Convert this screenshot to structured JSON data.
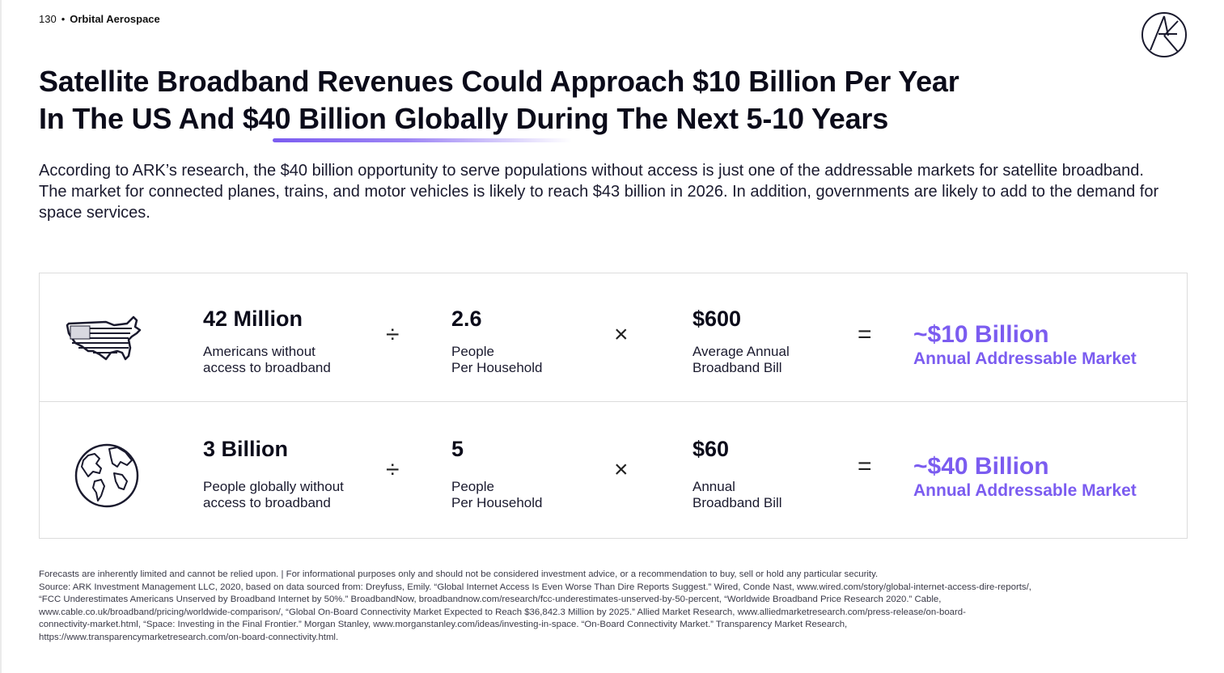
{
  "header": {
    "page_number": "130",
    "separator": "•",
    "section": "Orbital Aerospace",
    "logo_icon": "ark-logo-icon"
  },
  "title": {
    "line1": "Satellite Broadband Revenues Could Approach $10 Billion Per Year",
    "line2": "In The US And $40 Billion Globally During The Next 5-10 Years"
  },
  "intro": "According to ARK’s research, the $40 billion opportunity to serve populations without access is just one of the addressable markets for satellite broadband. The market for connected planes, trains, and motor vehicles is likely to reach $43 billion in 2026. In addition, governments are likely to add to the demand for space services.",
  "rows": [
    {
      "icon": "us-flag-map-icon",
      "a_value": "42 Million",
      "a_label": "Americans without\naccess to broadband",
      "op1": "÷",
      "b_value": "2.6",
      "b_label": "People\nPer Household",
      "op2": "×",
      "c_value": "$600",
      "c_label": "Average Annual\nBroadband Bill",
      "op3": "=",
      "result_value": "~$10 Billion",
      "result_label": "Annual Addressable Market"
    },
    {
      "icon": "globe-icon",
      "a_value": "3 Billion",
      "a_label": "People globally without\naccess to broadband",
      "op1": "÷",
      "b_value": "5",
      "b_label": "People\nPer Household",
      "op2": "×",
      "c_value": "$60",
      "c_label": "Annual\nBroadband Bill",
      "op3": "=",
      "result_value": "~$40 Billion",
      "result_label": "Annual Addressable Market"
    }
  ],
  "colors": {
    "accent": "#7b5cf0",
    "text": "#0b0b1a",
    "border": "#dcdcdc"
  },
  "footnote": "Forecasts are inherently limited and cannot be relied upon. | For informational purposes only and should not be considered investment advice, or a recommendation to buy, sell or hold any particular security.\nSource: ARK Investment Management LLC, 2020, based on data sourced from: Dreyfuss, Emily. “Global Internet Access Is Even Worse Than Dire Reports Suggest.” Wired, Conde Nast, www.wired.com/story/global-internet-access-dire-reports/,\n“FCC Underestimates Americans Unserved by Broadband Internet by 50%.” BroadbandNow, broadbandnow.com/research/fcc-underestimates-unserved-by-50-percent, “Worldwide Broadband Price Research 2020.” Cable,\nwww.cable.co.uk/broadband/pricing/worldwide-comparison/, “Global On-Board Connectivity Market Expected to Reach $36,842.3 Million by 2025.” Allied Market Research, www.alliedmarketresearch.com/press-release/on-board-\nconnectivity-market.html, “Space: Investing in the Final Frontier.” Morgan Stanley, www.morganstanley.com/ideas/investing-in-space. “On-Board Connectivity Market.” Transparency Market Research,\nhttps://www.transparencymarketresearch.com/on-board-connectivity.html."
}
